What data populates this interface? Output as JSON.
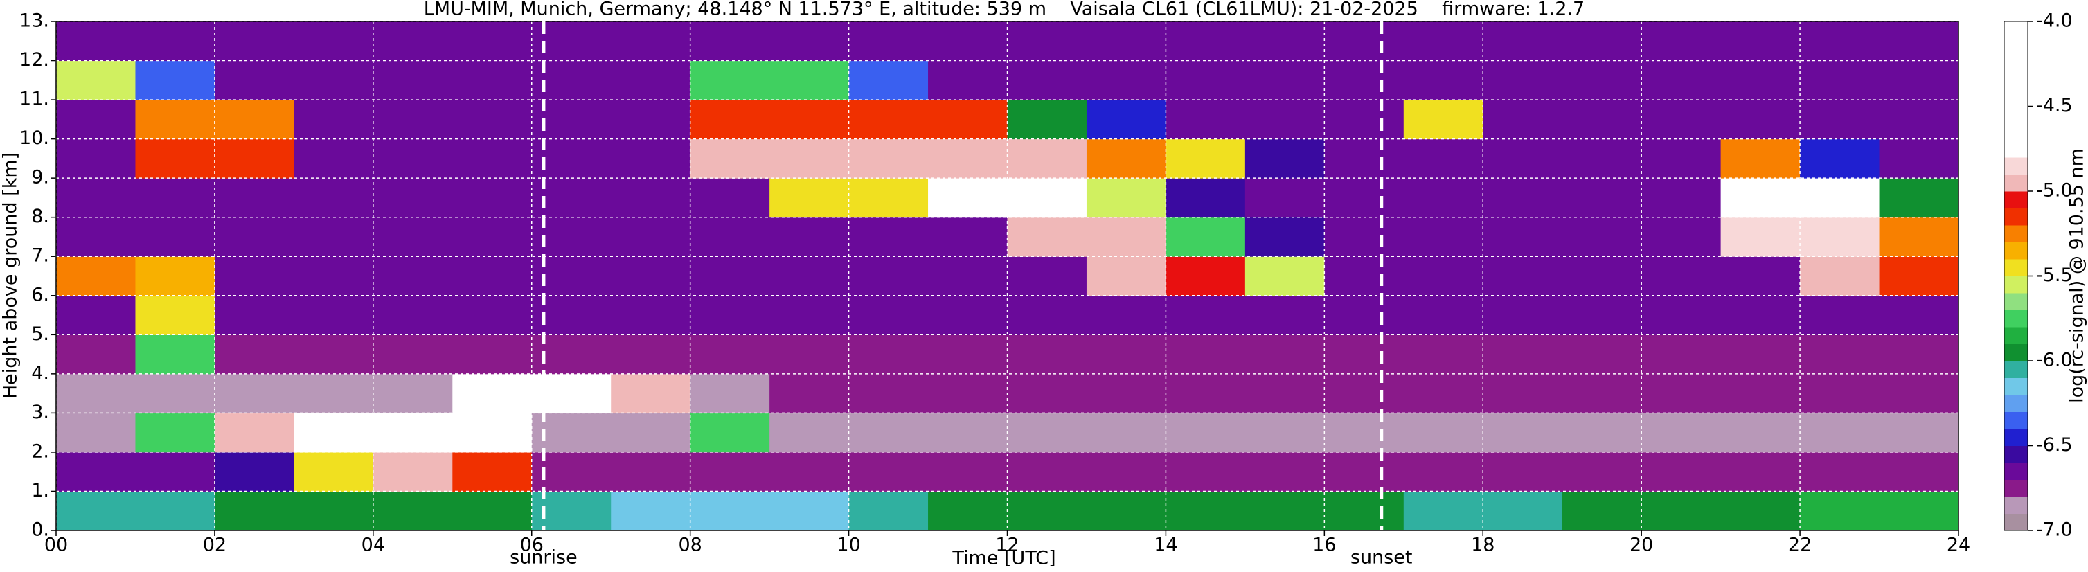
{
  "chart_data": {
    "type": "heatmap",
    "title": "LMU-MIM, Munich, Germany; 48.148° N 11.573° E, altitude: 539 m    Vaisala CL61 (CL61LMU): 21-02-2025    firmware: 1.2.7",
    "xlabel": "Time [UTC]",
    "ylabel": "Height above ground [km]",
    "colorbar_label": "log(rc-signal) @ 910.55 nm",
    "xlim": [
      0,
      24
    ],
    "ylim": [
      0,
      13
    ],
    "clim": [
      -7,
      -4
    ],
    "xticks": [
      {
        "value": 0,
        "label": "00"
      },
      {
        "value": 2,
        "label": "02"
      },
      {
        "value": 4,
        "label": "04"
      },
      {
        "value": 6,
        "label": "06"
      },
      {
        "value": 8,
        "label": "08"
      },
      10,
      12,
      14,
      16,
      18,
      20,
      22,
      24
    ],
    "yticks": [
      {
        "value": 0,
        "label": "0."
      },
      {
        "value": 1,
        "label": "1."
      },
      {
        "value": 2,
        "label": "2."
      },
      {
        "value": 3,
        "label": "3."
      },
      {
        "value": 4,
        "label": "4."
      },
      {
        "value": 5,
        "label": "5."
      },
      {
        "value": 6,
        "label": "6."
      },
      {
        "value": 7,
        "label": "7."
      },
      {
        "value": 8,
        "label": "8."
      },
      {
        "value": 9,
        "label": "9."
      },
      {
        "value": 10,
        "label": "10."
      },
      {
        "value": 11,
        "label": "11."
      },
      {
        "value": 12,
        "label": "12."
      },
      {
        "value": 13,
        "label": "13."
      }
    ],
    "cticks": [
      {
        "value": -7,
        "label": "-7.0"
      },
      -6.5,
      {
        "value": -6,
        "label": "-6.0"
      },
      -5.5,
      {
        "value": -5,
        "label": "-5.0"
      },
      -4.5,
      {
        "value": -4,
        "label": "-4.0"
      }
    ],
    "grid": true,
    "colorscale": [
      "#a890a0",
      "#b898b8",
      "#8a1a8a",
      "#6a0a9a",
      "#3a0aa0",
      "#2020d0",
      "#3a60f0",
      "#60a0f0",
      "#70c8e8",
      "#30b0a0",
      "#109030",
      "#20b040",
      "#40d060",
      "#90e080",
      "#d0f060",
      "#f0e020",
      "#f8b000",
      "#f88000",
      "#f03000",
      "#e81010",
      "#f0b8b8",
      "#f8d8d8",
      "#ffffff",
      "#ffffff",
      "#ffffff",
      "#ffffff",
      "#ffffff",
      "#ffffff",
      "#ffffff",
      "#ffffff"
    ],
    "x": [
      0.5,
      1.5,
      2.5,
      3.5,
      4.5,
      5.5,
      6.5,
      7.5,
      8.5,
      9.5,
      10.5,
      11.5,
      12.5,
      13.5,
      14.5,
      15.5,
      16.5,
      17.5,
      18.5,
      19.5,
      20.5,
      21.5,
      22.5,
      23.5
    ],
    "y": [
      0.5,
      1.5,
      2.5,
      3.5,
      4.5,
      5.5,
      6.5,
      7.5,
      8.5,
      9.5,
      10.5,
      11.5,
      12.5
    ],
    "z": [
      [
        -6.1,
        -6.1,
        -6.0,
        -6.0,
        -6.0,
        -6.0,
        -6.1,
        -6.2,
        -6.2,
        -6.2,
        -6.1,
        -6.0,
        -6.0,
        -6.0,
        -6.0,
        -6.0,
        -6.0,
        -6.1,
        -6.1,
        -6.0,
        -6.0,
        -6.0,
        -5.9,
        -5.9
      ],
      [
        -6.7,
        -6.7,
        -6.6,
        -5.5,
        -5.0,
        -5.2,
        -6.8,
        -6.8,
        -6.8,
        -6.8,
        -6.8,
        -6.8,
        -6.8,
        -6.8,
        -6.8,
        -6.8,
        -6.8,
        -6.8,
        -6.8,
        -6.8,
        -6.8,
        -6.8,
        -6.8,
        -6.8
      ],
      [
        -6.9,
        -5.8,
        -5.0,
        -4.6,
        -4.5,
        -4.8,
        -6.9,
        -6.9,
        -5.8,
        -6.9,
        -6.9,
        -6.9,
        -6.9,
        -6.9,
        -6.9,
        -6.9,
        -6.9,
        -6.9,
        -6.9,
        -6.9,
        -6.9,
        -6.9,
        -6.9,
        -6.9
      ],
      [
        -6.9,
        -6.9,
        -6.9,
        -6.9,
        -6.9,
        -4.8,
        -4.6,
        -5.0,
        -6.9,
        -6.8,
        -6.8,
        -6.8,
        -6.8,
        -6.8,
        -6.8,
        -6.8,
        -6.8,
        -6.8,
        -6.8,
        -6.8,
        -6.8,
        -6.8,
        -6.8,
        -6.8
      ],
      [
        -6.8,
        -5.8,
        -6.8,
        -6.8,
        -6.8,
        -6.8,
        -6.8,
        -6.8,
        -6.8,
        -6.8,
        -6.8,
        -6.8,
        -6.8,
        -6.8,
        -6.8,
        -6.8,
        -6.8,
        -6.8,
        -6.8,
        -6.8,
        -6.8,
        -6.8,
        -6.8,
        -6.8
      ],
      [
        -6.7,
        -5.5,
        -6.7,
        -6.7,
        -6.7,
        -6.7,
        -6.7,
        -6.7,
        -6.7,
        -6.7,
        -6.7,
        -6.7,
        -6.7,
        -6.7,
        -6.7,
        -6.7,
        -6.7,
        -6.7,
        -6.7,
        -6.7,
        -6.7,
        -6.7,
        -6.7,
        -6.7
      ],
      [
        -5.3,
        -5.4,
        -6.7,
        -6.7,
        -6.7,
        -6.7,
        -6.7,
        -6.7,
        -6.7,
        -6.7,
        -6.7,
        -6.7,
        -6.7,
        -5.0,
        -5.1,
        -5.6,
        -6.7,
        -6.7,
        -6.7,
        -6.7,
        -6.7,
        -6.7,
        -5.0,
        -5.2
      ],
      [
        -6.7,
        -6.7,
        -6.7,
        -6.7,
        -6.7,
        -6.7,
        -6.7,
        -6.7,
        -6.7,
        -6.7,
        -6.7,
        -6.7,
        -5.0,
        -5.0,
        -5.8,
        -6.6,
        -6.7,
        -6.7,
        -6.7,
        -6.7,
        -6.7,
        -4.9,
        -4.9,
        -5.3
      ],
      [
        -6.7,
        -6.7,
        -6.7,
        -6.7,
        -6.7,
        -6.7,
        -6.7,
        -6.7,
        -6.7,
        -5.5,
        -5.5,
        -4.8,
        -4.8,
        -5.6,
        -6.6,
        -6.7,
        -6.7,
        -6.7,
        -6.7,
        -6.7,
        -6.7,
        -4.8,
        -4.8,
        -6.0
      ],
      [
        -6.7,
        -5.2,
        -5.2,
        -6.7,
        -6.7,
        -6.7,
        -6.7,
        -6.7,
        -5.0,
        -5.0,
        -5.0,
        -5.0,
        -5.0,
        -5.3,
        -5.5,
        -6.6,
        -6.7,
        -6.7,
        -6.7,
        -6.7,
        -6.7,
        -5.3,
        -6.5,
        -6.7
      ],
      [
        -6.7,
        -5.3,
        -5.3,
        -6.7,
        -6.7,
        -6.7,
        -6.7,
        -6.7,
        -5.2,
        -5.2,
        -5.2,
        -5.2,
        -6.0,
        -6.5,
        -6.7,
        -6.7,
        -6.7,
        -5.5,
        -6.7,
        -6.7,
        -6.7,
        -6.7,
        -6.7,
        -6.7
      ],
      [
        -5.6,
        -6.4,
        -6.7,
        -6.7,
        -6.7,
        -6.7,
        -6.7,
        -6.7,
        -5.8,
        -5.8,
        -6.4,
        -6.7,
        -6.7,
        -6.7,
        -6.7,
        -6.7,
        -6.7,
        -6.7,
        -6.7,
        -6.7,
        -6.7,
        -6.7,
        -6.7,
        -6.7
      ],
      [
        -6.7,
        -6.7,
        -6.7,
        -6.7,
        -6.7,
        -6.7,
        -6.7,
        -6.7,
        -6.7,
        -6.7,
        -6.7,
        -6.7,
        -6.7,
        -6.7,
        -6.7,
        -6.7,
        -6.7,
        -6.7,
        -6.7,
        -6.7,
        -6.7,
        -6.7,
        -6.7,
        -6.7
      ]
    ],
    "annotations": [
      {
        "x": 6.15,
        "label": "sunrise"
      },
      {
        "x": 16.72,
        "label": "sunset"
      }
    ]
  }
}
